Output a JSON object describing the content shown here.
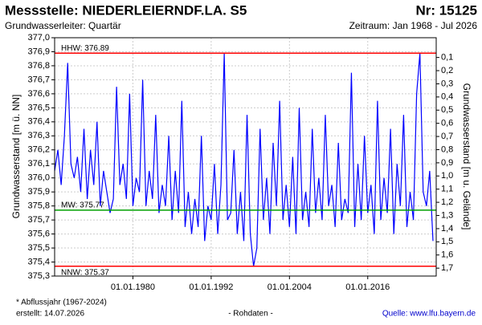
{
  "chart_data": {
    "type": "line",
    "title": "Messstelle: NIEDERLEIERNDF.LA. S5",
    "number": "Nr: 15125",
    "subtitle": "Grundwasserleiter: Quartär",
    "period": "Zeitraum: Jan 1968 - Jul 2026",
    "y_label": "Grundwasserstand [m ü. NN]",
    "y2_label": "Grundwasserstand [m u. Gelände]",
    "footnote": "* Abflussjahr (1967-2024)",
    "created": "erstellt:  14.07.2026",
    "raw_note": "- Rohdaten -",
    "source": "Quelle: www.lfu.bayern.de",
    "grid": true,
    "xlim": [
      "1968-01-01",
      "2026-07-01"
    ],
    "xticks": [
      {
        "value": "1980-01-01",
        "label": "01.01.1980"
      },
      {
        "value": "1992-01-01",
        "label": "01.01.1992"
      },
      {
        "value": "2004-01-01",
        "label": "01.01.2004"
      },
      {
        "value": "2016-01-01",
        "label": "01.01.2016"
      }
    ],
    "ylim": [
      375.3,
      377.0
    ],
    "yticks": [
      {
        "value": 375.3,
        "label": "375,3"
      },
      {
        "value": 375.4,
        "label": "375,4"
      },
      {
        "value": 375.5,
        "label": "375,5"
      },
      {
        "value": 375.6,
        "label": "375,6"
      },
      {
        "value": 375.7,
        "label": "375,7"
      },
      {
        "value": 375.8,
        "label": "375,8"
      },
      {
        "value": 375.9,
        "label": "375,9"
      },
      {
        "value": 376.0,
        "label": "376,0"
      },
      {
        "value": 376.1,
        "label": "376,1"
      },
      {
        "value": 376.2,
        "label": "376,2"
      },
      {
        "value": 376.3,
        "label": "376,3"
      },
      {
        "value": 376.4,
        "label": "376,4"
      },
      {
        "value": 376.5,
        "label": "376,5"
      },
      {
        "value": 376.6,
        "label": "376,6"
      },
      {
        "value": 376.7,
        "label": "376,7"
      },
      {
        "value": 376.8,
        "label": "376,8"
      },
      {
        "value": 376.9,
        "label": "376,9"
      },
      {
        "value": 377.0,
        "label": "377,0"
      }
    ],
    "y2lim": [
      1.76,
      -0.05
    ],
    "y2ticks": [
      {
        "value": 0.1,
        "label": "0,1"
      },
      {
        "value": 0.2,
        "label": "0,2"
      },
      {
        "value": 0.3,
        "label": "0,3"
      },
      {
        "value": 0.4,
        "label": "0,4"
      },
      {
        "value": 0.5,
        "label": "0,5"
      },
      {
        "value": 0.6,
        "label": "0,6"
      },
      {
        "value": 0.7,
        "label": "0,7"
      },
      {
        "value": 0.8,
        "label": "0,8"
      },
      {
        "value": 0.9,
        "label": "0,9"
      },
      {
        "value": 1.0,
        "label": "1,0"
      },
      {
        "value": 1.1,
        "label": "1,1"
      },
      {
        "value": 1.2,
        "label": "1,2"
      },
      {
        "value": 1.3,
        "label": "1,3"
      },
      {
        "value": 1.4,
        "label": "1,4"
      },
      {
        "value": 1.5,
        "label": "1,5"
      },
      {
        "value": 1.6,
        "label": "1,6"
      },
      {
        "value": 1.7,
        "label": "1,7"
      }
    ],
    "reference_lines": [
      {
        "label": "HHW: 376.89",
        "value": 376.89,
        "color": "#ff0000"
      },
      {
        "label": "MW: 375.77",
        "value": 375.77,
        "color": "#00a000"
      },
      {
        "label": "NNW: 375.37",
        "value": 375.37,
        "color": "#ff0000"
      }
    ],
    "x": [
      "1968-01-01",
      "1968-07-01",
      "1969-01-01",
      "1969-07-01",
      "1970-01-01",
      "1970-07-01",
      "1971-01-01",
      "1971-07-01",
      "1972-01-01",
      "1972-07-01",
      "1973-01-01",
      "1973-07-01",
      "1974-01-01",
      "1974-07-01",
      "1975-01-01",
      "1975-07-01",
      "1976-01-01",
      "1976-07-01",
      "1977-01-01",
      "1977-07-01",
      "1978-01-01",
      "1978-07-01",
      "1979-01-01",
      "1979-07-01",
      "1980-01-01",
      "1980-07-01",
      "1981-01-01",
      "1981-07-01",
      "1982-01-01",
      "1982-07-01",
      "1983-01-01",
      "1983-07-01",
      "1984-01-01",
      "1984-07-01",
      "1985-01-01",
      "1985-07-01",
      "1986-01-01",
      "1986-07-01",
      "1987-01-01",
      "1987-07-01",
      "1988-01-01",
      "1988-07-01",
      "1989-01-01",
      "1989-07-01",
      "1990-01-01",
      "1990-07-01",
      "1991-01-01",
      "1991-07-01",
      "1992-01-01",
      "1992-07-01",
      "1993-01-01",
      "1993-07-01",
      "1994-01-01",
      "1994-07-01",
      "1995-01-01",
      "1995-07-01",
      "1996-01-01",
      "1996-07-01",
      "1997-01-01",
      "1997-07-01",
      "1998-01-01",
      "1998-07-01",
      "1999-01-01",
      "1999-07-01",
      "2000-01-01",
      "2000-07-01",
      "2001-01-01",
      "2001-07-01",
      "2002-01-01",
      "2002-07-01",
      "2003-01-01",
      "2003-07-01",
      "2004-01-01",
      "2004-07-01",
      "2005-01-01",
      "2005-07-01",
      "2006-01-01",
      "2006-07-01",
      "2007-01-01",
      "2007-07-01",
      "2008-01-01",
      "2008-07-01",
      "2009-01-01",
      "2009-07-01",
      "2010-01-01",
      "2010-07-01",
      "2011-01-01",
      "2011-07-01",
      "2012-01-01",
      "2012-07-01",
      "2013-01-01",
      "2013-07-01",
      "2014-01-01",
      "2014-07-01",
      "2015-01-01",
      "2015-07-01",
      "2016-01-01",
      "2016-07-01",
      "2017-01-01",
      "2017-07-01",
      "2018-01-01",
      "2018-07-01",
      "2019-01-01",
      "2019-07-01",
      "2020-01-01",
      "2020-07-01",
      "2021-01-01",
      "2021-07-01",
      "2022-01-01",
      "2022-07-01",
      "2023-01-01",
      "2023-07-01",
      "2024-01-01",
      "2024-07-01",
      "2025-01-01",
      "2025-07-01",
      "2026-01-01"
    ],
    "series": [
      {
        "name": "Grundwasserstand",
        "color": "#0000ff",
        "values": [
          376.05,
          376.2,
          375.95,
          376.3,
          376.82,
          376.1,
          376.0,
          376.15,
          375.9,
          376.35,
          375.85,
          376.2,
          375.95,
          376.4,
          375.8,
          376.05,
          375.9,
          375.75,
          375.85,
          376.65,
          375.95,
          376.1,
          375.85,
          376.6,
          375.8,
          376.0,
          375.9,
          376.7,
          375.8,
          376.05,
          375.85,
          376.45,
          375.75,
          375.95,
          375.8,
          376.3,
          375.7,
          376.05,
          375.75,
          376.55,
          375.65,
          375.9,
          375.6,
          375.85,
          375.65,
          376.3,
          375.55,
          375.8,
          375.7,
          376.1,
          375.6,
          375.95,
          376.89,
          375.7,
          375.75,
          376.2,
          375.6,
          375.9,
          375.55,
          376.45,
          375.6,
          375.37,
          375.5,
          376.35,
          375.7,
          376.0,
          375.6,
          376.25,
          375.8,
          376.55,
          375.7,
          375.95,
          375.65,
          376.15,
          375.6,
          376.5,
          375.7,
          375.9,
          375.65,
          376.35,
          375.75,
          376.0,
          375.7,
          376.45,
          375.8,
          375.95,
          375.65,
          376.25,
          375.7,
          375.85,
          375.75,
          376.75,
          375.65,
          376.1,
          375.7,
          376.3,
          375.75,
          375.95,
          375.6,
          376.55,
          375.7,
          376.0,
          375.75,
          376.35,
          375.6,
          376.1,
          375.8,
          376.45,
          375.65,
          375.9,
          375.7,
          376.6,
          376.89,
          375.9,
          375.8,
          376.05,
          375.55
        ]
      }
    ]
  }
}
